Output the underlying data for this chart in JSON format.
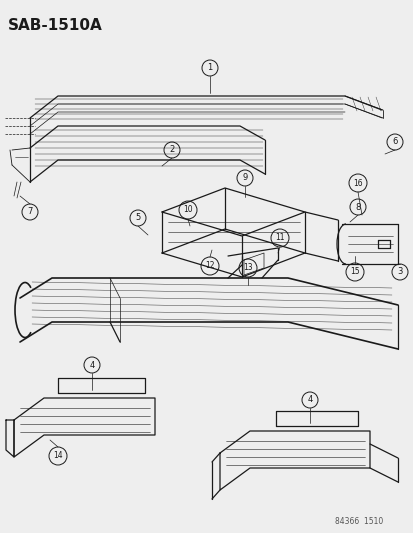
{
  "title": "SAB-1510A",
  "footer": "84366  1510",
  "bg_color": "#eeeeee",
  "line_color": "#1a1a1a"
}
